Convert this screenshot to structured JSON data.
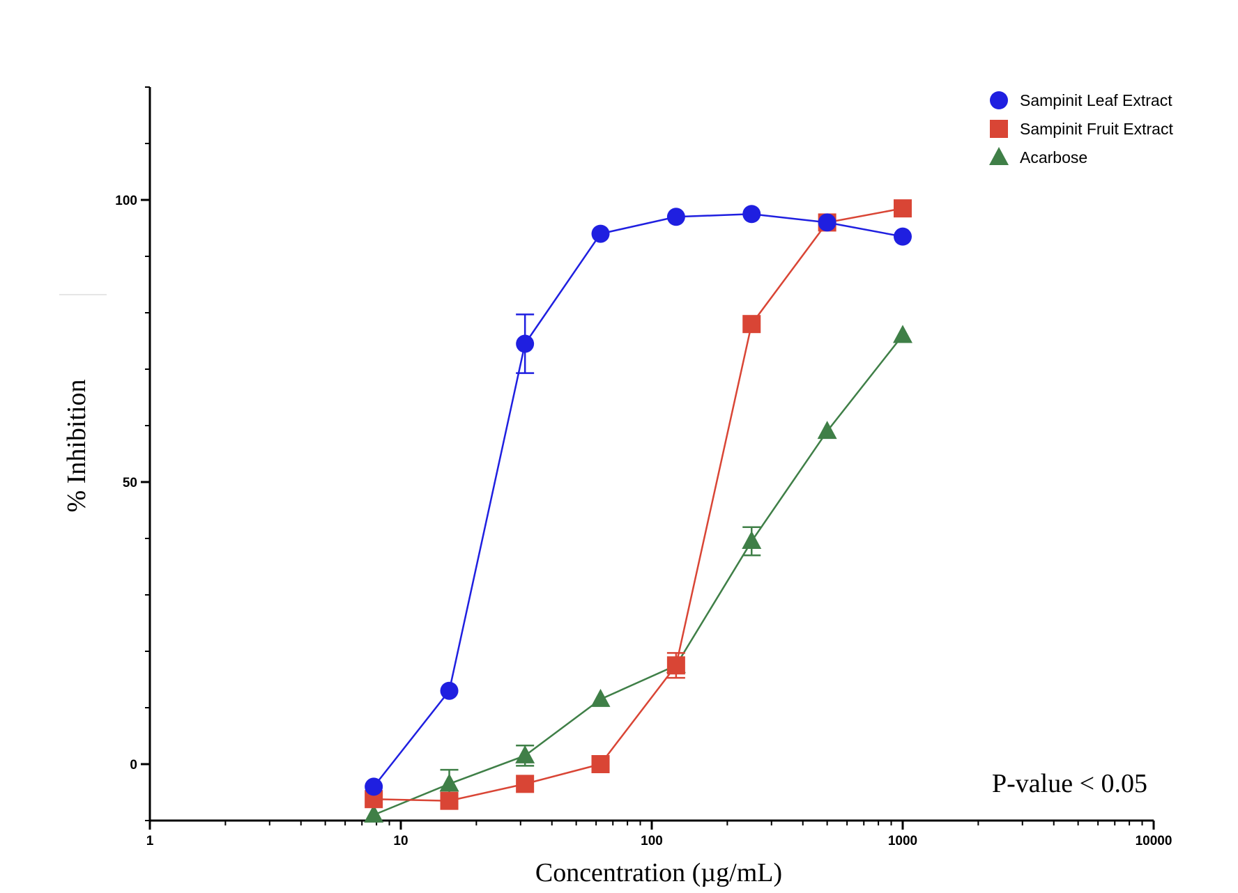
{
  "chart_data": {
    "type": "line",
    "title": "",
    "xlabel": "Concentration (µg/mL)",
    "ylabel": "% Inhibition",
    "xscale": "log",
    "xlim": [
      1,
      10000
    ],
    "ylim": [
      -10,
      120
    ],
    "xticks": [
      {
        "value": 1,
        "label": "1"
      },
      {
        "value": 10,
        "label": "10"
      },
      {
        "value": 100,
        "label": "100"
      },
      {
        "value": 1000,
        "label": "1000"
      },
      {
        "value": 10000,
        "label": "10000"
      }
    ],
    "yticks": [
      {
        "value": 0,
        "label": "0"
      },
      {
        "value": 50,
        "label": "50"
      },
      {
        "value": 100,
        "label": "100"
      }
    ],
    "legend_position": "top-right",
    "annotation": "P-value < 0.05",
    "series": [
      {
        "name": "Sampinit Leaf Extract",
        "color": "#1f1fe0",
        "marker": "circle",
        "x": [
          7.8,
          15.6,
          31.25,
          62.5,
          125,
          250,
          500,
          1000
        ],
        "y": [
          -4,
          13,
          74.5,
          94,
          97,
          97.5,
          96,
          93.5
        ],
        "err": [
          0,
          0,
          5.2,
          0,
          0,
          0,
          0,
          0
        ]
      },
      {
        "name": "Sampinit Fruit Extract",
        "color": "#d94535",
        "marker": "square",
        "x": [
          7.8,
          15.6,
          31.25,
          62.5,
          125,
          250,
          500,
          1000
        ],
        "y": [
          -6.2,
          -6.5,
          -3.5,
          0,
          17.5,
          78,
          96,
          98.5
        ],
        "err": [
          0,
          0,
          0,
          0,
          2.2,
          0,
          0,
          0
        ]
      },
      {
        "name": "Acarbose",
        "color": "#3f7f47",
        "marker": "triangle",
        "x": [
          7.8,
          15.6,
          31.25,
          62.5,
          125,
          250,
          500,
          1000
        ],
        "y": [
          -9,
          -3.5,
          1.5,
          11.5,
          17.5,
          39.5,
          59,
          76
        ],
        "err": [
          0,
          2.5,
          1.8,
          0,
          0,
          2.5,
          0,
          0
        ]
      }
    ]
  }
}
